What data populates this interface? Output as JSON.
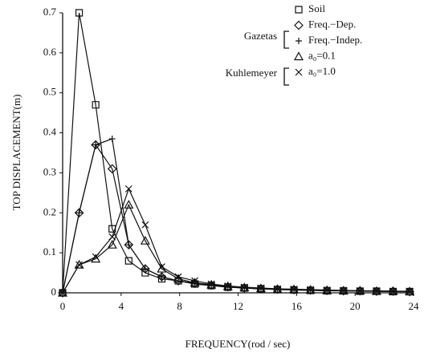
{
  "chart_data": {
    "type": "line",
    "x_label": "FREQUENCY(rod / sec)",
    "y_label": "TOP DISPLACEMENT(m)",
    "annotations": [
      "Gazetas",
      "Kuhlemeyer"
    ],
    "x": [
      0,
      1.13,
      2.26,
      3.39,
      4.52,
      5.65,
      6.78,
      7.91,
      9.04,
      10.17,
      11.3,
      12.43,
      13.56,
      14.69,
      15.82,
      16.95,
      18.08,
      19.21,
      20.34,
      21.47,
      22.6,
      23.73
    ],
    "series": [
      {
        "name": "Soil",
        "color": "#111111",
        "marker": "square",
        "values": [
          0,
          0.7,
          0.47,
          0.16,
          0.08,
          0.05,
          0.035,
          0.03,
          0.022,
          0.018,
          0.014,
          0.012,
          0.01,
          0.008,
          0.007,
          0.006,
          0.005,
          0.005,
          0.004,
          0.004,
          0.003,
          0.003
        ]
      },
      {
        "name": "Freq.−Dep.",
        "color": "#111111",
        "marker": "diamond",
        "values": [
          0,
          0.2,
          0.37,
          0.31,
          0.12,
          0.06,
          0.04,
          0.03,
          0.024,
          0.019,
          0.015,
          0.012,
          0.01,
          0.009,
          0.008,
          0.007,
          0.006,
          0.005,
          0.005,
          0.004,
          0.004,
          0.003
        ]
      },
      {
        "name": "Freq.−Indep.",
        "color": "#111111",
        "marker": "plus",
        "values": [
          0,
          0.2,
          0.37,
          0.385,
          0.12,
          0.06,
          0.04,
          0.03,
          0.024,
          0.019,
          0.015,
          0.012,
          0.01,
          0.009,
          0.008,
          0.007,
          0.006,
          0.005,
          0.005,
          0.004,
          0.004,
          0.003
        ]
      },
      {
        "name": "a₀=0.1",
        "color": "#111111",
        "marker": "triangle",
        "values": [
          0,
          0.07,
          0.085,
          0.12,
          0.22,
          0.13,
          0.06,
          0.035,
          0.025,
          0.02,
          0.016,
          0.013,
          0.011,
          0.009,
          0.008,
          0.007,
          0.006,
          0.005,
          0.005,
          0.004,
          0.004,
          0.003
        ]
      },
      {
        "name": "a₀=1.0",
        "color": "#111111",
        "marker": "x",
        "values": [
          0,
          0.07,
          0.09,
          0.14,
          0.26,
          0.17,
          0.065,
          0.04,
          0.03,
          0.022,
          0.017,
          0.014,
          0.012,
          0.01,
          0.009,
          0.008,
          0.007,
          0.006,
          0.005,
          0.005,
          0.004,
          0.004
        ]
      }
    ],
    "xlim": [
      0,
      24
    ],
    "xticks": [
      0,
      4,
      8,
      12,
      16,
      20,
      24
    ],
    "ylim": [
      0,
      0.7
    ],
    "yticks": [
      0,
      0.1,
      0.2,
      0.3,
      0.4,
      0.5,
      0.6,
      0.7
    ],
    "grid": false
  }
}
